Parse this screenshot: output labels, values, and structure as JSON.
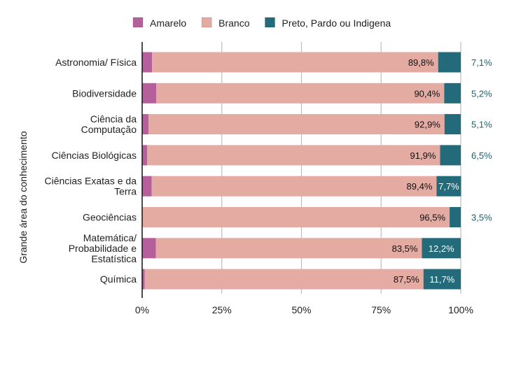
{
  "chart_data": {
    "type": "bar",
    "orientation": "horizontal",
    "stacked": true,
    "ylabel": "Grande área do conhecimento",
    "xlabel": "",
    "xlim": [
      0,
      100
    ],
    "x_ticks": [
      "0%",
      "25%",
      "50%",
      "75%",
      "100%"
    ],
    "grid": true,
    "legend_position": "top",
    "categories": [
      [
        "Astronomia/ Física"
      ],
      [
        "Biodiversidade"
      ],
      [
        "Ciência da",
        "Computação"
      ],
      [
        "Ciências Biológicas"
      ],
      [
        "Ciências Exatas e da",
        "Terra"
      ],
      [
        "Geociências"
      ],
      [
        "Matemática/",
        "Probabilidade e",
        "Estatística"
      ],
      [
        "Química"
      ]
    ],
    "series": [
      {
        "name": "Amarelo",
        "color": "#b5609a",
        "values": [
          3.1,
          4.4,
          2.0,
          1.6,
          3.0,
          0,
          4.3,
          0.8
        ],
        "labels": [
          "3,1%",
          "4,4%",
          "2,0%",
          "1,6%",
          "3,0%",
          "",
          "4,3%",
          "0,8%"
        ]
      },
      {
        "name": "Branco",
        "color": "#e3aba2",
        "values": [
          89.8,
          90.4,
          92.9,
          91.9,
          89.4,
          96.5,
          83.5,
          87.5
        ],
        "labels": [
          "89,8%",
          "90,4%",
          "92,9%",
          "91,9%",
          "89,4%",
          "96,5%",
          "83,5%",
          "87,5%"
        ]
      },
      {
        "name": "Preto, Pardo ou Indigena",
        "color": "#236a7a",
        "values": [
          7.1,
          5.2,
          5.1,
          6.5,
          7.7,
          3.5,
          12.2,
          11.7
        ],
        "labels": [
          "7,1%",
          "5,2%",
          "5,1%",
          "6,5%",
          "7,7%",
          "3,5%",
          "12,2%",
          "11,7%"
        ]
      }
    ]
  }
}
